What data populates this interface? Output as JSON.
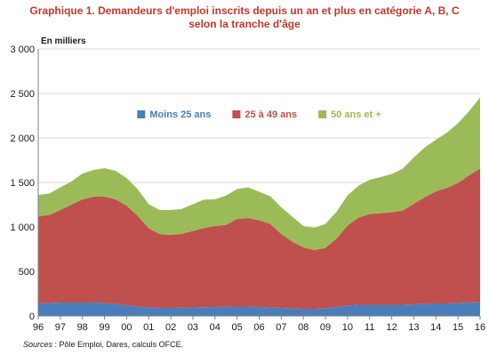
{
  "chart_data": {
    "type": "area",
    "stacked": true,
    "title": "Graphique 1. Demandeurs d'emploi inscrits depuis un an et plus en catégorie A, B, C",
    "subtitle": "selon la tranche d'âge",
    "unit_label": "En milliers",
    "source_prefix": "Sources",
    "source_text": " : Pôle Emploi, Dares, calculs OFCE.",
    "x": [
      1996,
      1996.5,
      1997,
      1997.5,
      1998,
      1998.5,
      1999,
      1999.5,
      2000,
      2000.5,
      2001,
      2001.5,
      2002,
      2002.5,
      2003,
      2003.5,
      2004,
      2004.5,
      2005,
      2005.5,
      2006,
      2006.5,
      2007,
      2007.5,
      2008,
      2008.5,
      2009,
      2009.5,
      2010,
      2010.5,
      2011,
      2011.5,
      2012,
      2012.5,
      2013,
      2013.5,
      2014,
      2014.5,
      2015,
      2015.5,
      2016
    ],
    "x_tick_labels": [
      "96",
      "97",
      "98",
      "99",
      "00",
      "01",
      "02",
      "03",
      "04",
      "05",
      "06",
      "07",
      "08",
      "09",
      "10",
      "11",
      "12",
      "13",
      "14",
      "15",
      "16"
    ],
    "x_ticks": [
      1996,
      1997,
      1998,
      1999,
      2000,
      2001,
      2002,
      2003,
      2004,
      2005,
      2006,
      2007,
      2008,
      2009,
      2010,
      2011,
      2012,
      2013,
      2014,
      2015,
      2016
    ],
    "y_ticks": [
      0,
      500,
      1000,
      1500,
      2000,
      2500,
      3000
    ],
    "y_tick_labels": [
      "0",
      "500",
      "1 000",
      "1 500",
      "2 000",
      "2 500",
      "3 000"
    ],
    "ylim": [
      0,
      3000
    ],
    "xlim": [
      1996,
      2016
    ],
    "grid": "horizontal",
    "legend_placement": "center",
    "series": [
      {
        "name": "Moins 25 ans",
        "color": "#4a7ebb",
        "values": [
          140,
          145,
          150,
          150,
          150,
          150,
          145,
          135,
          120,
          105,
          95,
          90,
          90,
          92,
          95,
          97,
          100,
          102,
          105,
          105,
          100,
          95,
          90,
          85,
          80,
          80,
          85,
          100,
          115,
          125,
          125,
          125,
          125,
          125,
          130,
          135,
          140,
          140,
          145,
          150,
          155
        ]
      },
      {
        "name": "25 à 49 ans",
        "color": "#c0504d",
        "values": [
          980,
          990,
          1040,
          1100,
          1160,
          1190,
          1195,
          1175,
          1120,
          1020,
          890,
          830,
          820,
          830,
          860,
          890,
          910,
          920,
          985,
          995,
          975,
          940,
          830,
          750,
          690,
          660,
          680,
          770,
          900,
          980,
          1020,
          1030,
          1040,
          1060,
          1130,
          1200,
          1260,
          1300,
          1350,
          1430,
          1500
        ]
      },
      {
        "name": "50 ans et +",
        "color": "#9bbb59",
        "values": [
          240,
          240,
          255,
          260,
          290,
          300,
          320,
          320,
          310,
          300,
          270,
          270,
          280,
          280,
          300,
          320,
          300,
          330,
          335,
          345,
          320,
          310,
          300,
          280,
          240,
          250,
          270,
          300,
          340,
          360,
          385,
          405,
          430,
          470,
          520,
          560,
          580,
          620,
          670,
          720,
          800
        ]
      }
    ]
  }
}
